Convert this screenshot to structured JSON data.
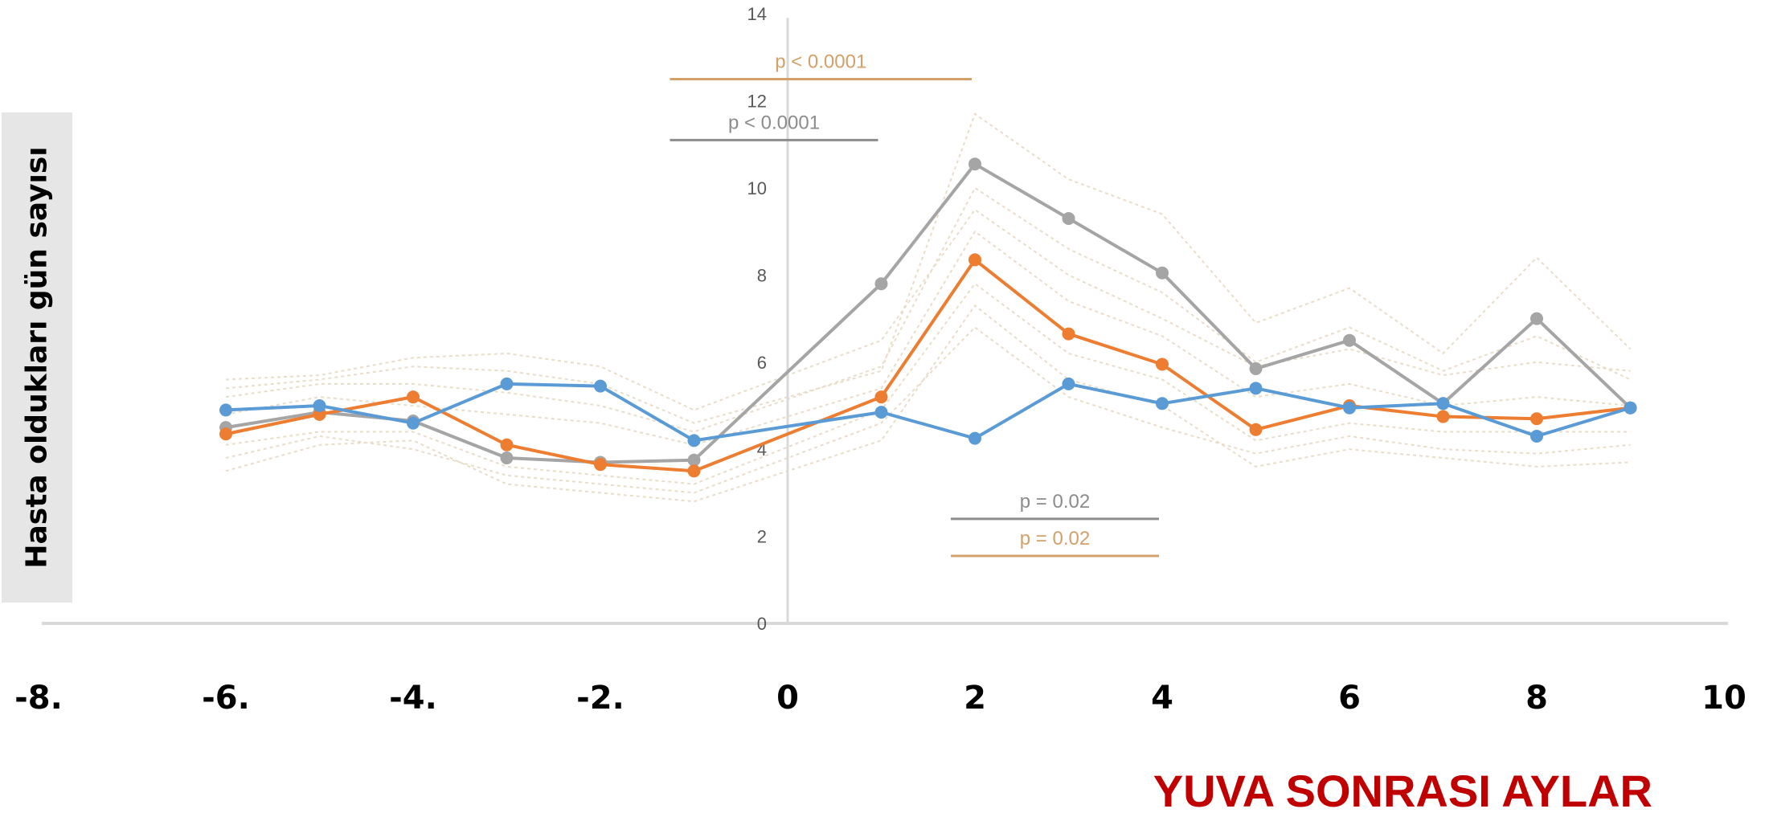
{
  "chart_data": {
    "type": "line",
    "xlabel": "YUVA SONRASI AYLAR",
    "ylabel": "Hasta oldukları gün sayısı",
    "xlim": [
      -8,
      10
    ],
    "ylim": [
      0,
      14
    ],
    "x_ticks": [
      "-8.",
      "-6.",
      "-4.",
      "-2.",
      "0",
      "2",
      "4",
      "6",
      "8",
      "10"
    ],
    "x_tick_values": [
      -8,
      -6,
      -4,
      -2,
      0,
      2,
      4,
      6,
      8,
      10
    ],
    "y_ticks": [
      0,
      2,
      4,
      6,
      8,
      10,
      12,
      14
    ],
    "grid": false,
    "legend": "none",
    "series": [
      {
        "color": "#5b9bd5",
        "x": [
          -6,
          -5,
          -4,
          -3,
          -2,
          -1,
          1,
          2,
          3,
          4,
          5,
          6,
          7,
          8,
          9
        ],
        "y": [
          4.9,
          5.0,
          4.6,
          5.5,
          5.45,
          4.2,
          4.85,
          4.25,
          5.5,
          5.05,
          5.4,
          4.95,
          5.05,
          4.3,
          4.95
        ]
      },
      {
        "color": "#ed7d31",
        "x": [
          -6,
          -5,
          -4,
          -3,
          -2,
          -1,
          1,
          2,
          3,
          4,
          5,
          6,
          7,
          8,
          9
        ],
        "y": [
          4.35,
          4.8,
          5.2,
          4.1,
          3.65,
          3.5,
          5.2,
          8.35,
          6.65,
          5.95,
          4.45,
          5.0,
          4.75,
          4.7,
          4.95
        ]
      },
      {
        "color": "#a5a5a5",
        "x": [
          -6,
          -5,
          -4,
          -3,
          -2,
          -1,
          1,
          2,
          3,
          4,
          5,
          6,
          7,
          8,
          9
        ],
        "y": [
          4.5,
          4.85,
          4.65,
          3.8,
          3.7,
          3.75,
          7.8,
          10.55,
          9.3,
          8.05,
          5.85,
          6.5,
          5.05,
          7.0,
          4.95
        ]
      }
    ],
    "background_lines": [
      {
        "y": [
          5.4,
          5.6,
          5.9,
          5.8,
          5.5,
          4.6,
          5.8,
          11.7,
          10.2,
          9.4,
          6.9,
          7.7,
          6.2,
          8.4,
          6.3
        ]
      },
      {
        "y": [
          3.5,
          4.1,
          4.2,
          3.2,
          3.0,
          2.8,
          4.2,
          7.3,
          5.6,
          5.0,
          3.6,
          4.0,
          3.8,
          3.6,
          3.7
        ]
      },
      {
        "y": [
          5.6,
          5.7,
          6.1,
          6.2,
          5.9,
          4.9,
          6.5,
          9.5,
          8.0,
          7.0,
          5.9,
          6.3,
          5.7,
          6.0,
          5.8
        ]
      },
      {
        "y": [
          3.8,
          4.3,
          4.0,
          3.4,
          3.2,
          3.0,
          4.6,
          6.8,
          5.2,
          4.5,
          3.9,
          4.3,
          4.0,
          3.9,
          4.1
        ]
      },
      {
        "y": [
          4.8,
          5.2,
          5.0,
          4.8,
          4.6,
          4.1,
          5.4,
          9.0,
          7.4,
          6.6,
          5.2,
          5.5,
          5.0,
          5.2,
          5.0
        ]
      },
      {
        "y": [
          5.2,
          5.5,
          5.5,
          5.3,
          5.0,
          4.4,
          5.9,
          10.0,
          8.6,
          7.6,
          6.0,
          6.8,
          5.8,
          6.6,
          5.6
        ]
      },
      {
        "y": [
          4.1,
          4.4,
          4.4,
          3.6,
          3.4,
          3.2,
          4.9,
          7.8,
          6.2,
          5.6,
          4.2,
          4.6,
          4.4,
          4.4,
          4.4
        ]
      }
    ],
    "annotations": [
      {
        "text": "p < 0.0001",
        "color": "#d4a06a",
        "x1": -1,
        "x2": 2,
        "y": 12.5
      },
      {
        "text": "p < 0.0001",
        "color": "#8c8c8c",
        "x1": -1,
        "x2": 1,
        "y": 11.1
      },
      {
        "text": "p = 0.02",
        "color": "#8c8c8c",
        "x1": 2,
        "x2": 4,
        "y": 2.4
      },
      {
        "text": "p = 0.02",
        "color": "#d4a06a",
        "x1": 2,
        "x2": 4,
        "y": 1.55
      }
    ]
  }
}
